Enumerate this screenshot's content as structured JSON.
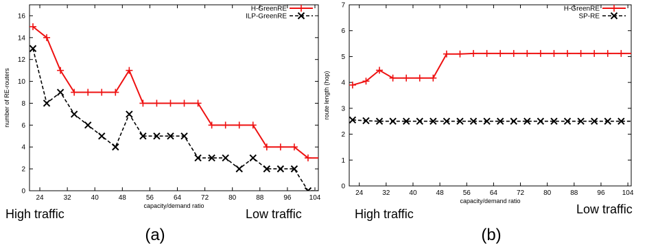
{
  "chart_data": [
    {
      "type": "line",
      "panel_label": "(a)",
      "xlabel": "capacity/demand ratio",
      "ylabel": "number of RE-routers",
      "xlim": [
        21,
        105
      ],
      "ylim": [
        0,
        17
      ],
      "xticks": [
        24,
        32,
        40,
        48,
        56,
        64,
        72,
        80,
        88,
        96,
        104
      ],
      "yticks": [
        0,
        2,
        4,
        6,
        8,
        10,
        12,
        14,
        16
      ],
      "legend_position": "top-right",
      "annotations": {
        "left": "High traffic",
        "right": "Low traffic"
      },
      "x": [
        22,
        26,
        30,
        34,
        38,
        42,
        46,
        50,
        54,
        58,
        62,
        66,
        70,
        74,
        78,
        82,
        86,
        90,
        94,
        98,
        102,
        106
      ],
      "series": [
        {
          "name": "H-GreenRE",
          "color": "#ee1111",
          "style": "solid",
          "marker": "plus",
          "values": [
            15,
            14,
            11,
            9,
            9,
            9,
            9,
            11,
            8,
            8,
            8,
            8,
            8,
            6,
            6,
            6,
            6,
            4,
            4,
            4,
            3,
            3
          ]
        },
        {
          "name": "ILP-GreenRE",
          "color": "#000000",
          "style": "dashed",
          "marker": "cross",
          "values": [
            13,
            8,
            9,
            7,
            6,
            5,
            4,
            7,
            5,
            5,
            5,
            5,
            3,
            3,
            3,
            2,
            3,
            2,
            2,
            2,
            0,
            0
          ]
        }
      ]
    },
    {
      "type": "line",
      "panel_label": "(b)",
      "xlabel": "capacity/demand ratio",
      "ylabel": "route length (hop)",
      "xlim": [
        21,
        105
      ],
      "ylim": [
        0,
        7
      ],
      "xticks": [
        24,
        32,
        40,
        48,
        56,
        64,
        72,
        80,
        88,
        96,
        104
      ],
      "yticks": [
        0,
        1,
        2,
        3,
        4,
        5,
        6,
        7
      ],
      "legend_position": "top-right",
      "annotations": {
        "left": "High traffic",
        "right": "Low traffic"
      },
      "x": [
        22,
        26,
        30,
        34,
        38,
        42,
        46,
        50,
        54,
        58,
        62,
        66,
        70,
        74,
        78,
        82,
        86,
        90,
        94,
        98,
        102,
        106
      ],
      "series": [
        {
          "name": "H-GreenRE",
          "color": "#ee1111",
          "style": "solid",
          "marker": "plus",
          "values": [
            3.9,
            4.05,
            4.47,
            4.17,
            4.17,
            4.17,
            4.17,
            5.1,
            5.1,
            5.12,
            5.12,
            5.12,
            5.12,
            5.12,
            5.12,
            5.12,
            5.12,
            5.12,
            5.12,
            5.12,
            5.12,
            5.12
          ]
        },
        {
          "name": "SP-RE",
          "color": "#000000",
          "style": "dashed",
          "marker": "cross",
          "values": [
            2.55,
            2.52,
            2.5,
            2.5,
            2.5,
            2.5,
            2.5,
            2.5,
            2.5,
            2.5,
            2.5,
            2.5,
            2.5,
            2.5,
            2.5,
            2.5,
            2.5,
            2.5,
            2.5,
            2.5,
            2.5,
            2.5
          ]
        }
      ]
    }
  ]
}
